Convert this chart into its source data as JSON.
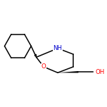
{
  "background_color": "#ffffff",
  "atom_colors": {
    "N": "#0000cc",
    "O": "#ff0000"
  },
  "bond_color": "#000000",
  "label_NH": "NH",
  "label_O": "O",
  "label_OH": "OH",
  "figsize": [
    1.52,
    1.52
  ],
  "dpi": 100,
  "bond_lw": 1.1,
  "font_size": 6.2
}
